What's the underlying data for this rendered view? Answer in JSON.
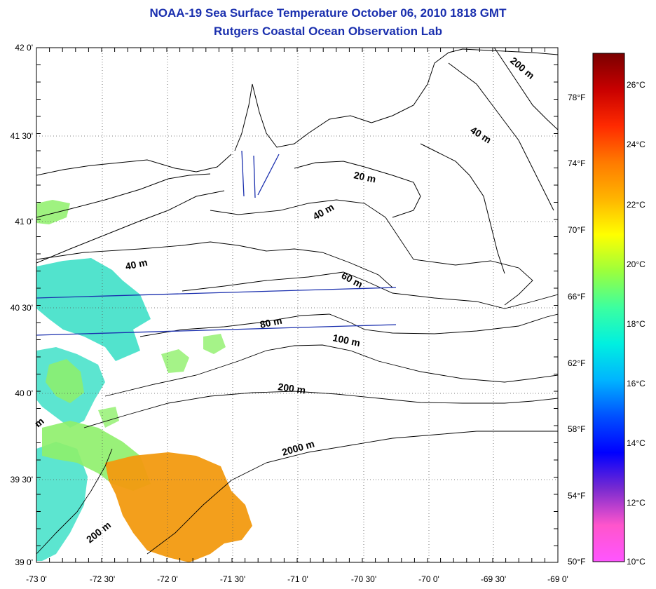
{
  "header": {
    "title": "NOAA-19 Sea Surface Temperature October 06, 2010 1818 GMT",
    "subtitle": "Rutgers Coastal Ocean Observation Lab"
  },
  "map": {
    "lat_ticks": [
      "42 0'",
      "41 30'",
      "41 0'",
      "40 30'",
      "40 0'",
      "39 30'",
      "39 0'"
    ],
    "lon_ticks": [
      "-73 0'",
      "-72 30'",
      "-72 0'",
      "-71 30'",
      "-71 0'",
      "-70 30'",
      "-70 0'",
      "-69 30'",
      "-69 0'"
    ],
    "contour_labels": [
      "200 m",
      "40 m",
      "20 m",
      "40 m",
      "40 m",
      "60 m",
      "80 m",
      "100 m",
      "200 m",
      "2000 m",
      "200 m",
      "m"
    ],
    "colors": {
      "coast": "#000000",
      "transect": "#1a2fae",
      "water_cool": "#3fe0c8",
      "water_mild": "#8ef06a",
      "water_warm": "#f29a10"
    }
  },
  "colorbar": {
    "celsius_labels": [
      "26°C",
      "24°C",
      "22°C",
      "20°C",
      "18°C",
      "16°C",
      "14°C",
      "12°C",
      "10°C"
    ],
    "fahrenheit_labels": [
      "78°F",
      "74°F",
      "70°F",
      "66°F",
      "62°F",
      "58°F",
      "54°F",
      "50°F"
    ],
    "gradient": [
      "#7a0000",
      "#c80000",
      "#ff2a00",
      "#ff7a00",
      "#ffb400",
      "#ffff00",
      "#9cff3c",
      "#3cffa0",
      "#00f0e0",
      "#00b4ff",
      "#0050ff",
      "#0000ff",
      "#7a2bd0",
      "#ff55cc",
      "#ff55ff"
    ]
  }
}
